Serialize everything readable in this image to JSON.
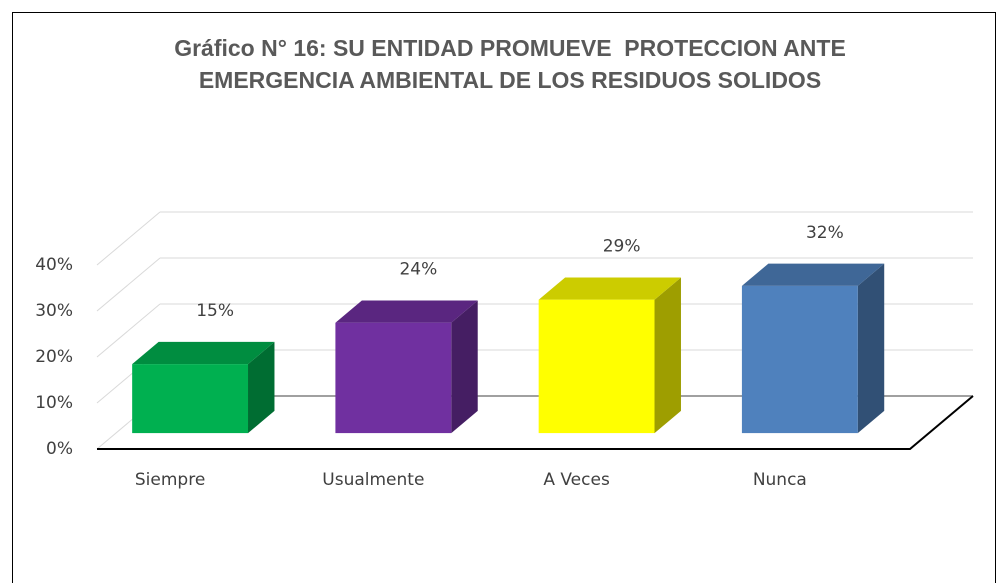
{
  "chart_data": {
    "type": "bar3d",
    "title": [
      "Gráfico N° 16: SU ENTIDAD PROMUEVE  PROTECCION ANTE",
      "EMERGENCIA AMBIENTAL DE LOS RESIDUOS SOLIDOS"
    ],
    "categories": [
      "Siempre",
      "Usualmente",
      "A Veces",
      "Nunca"
    ],
    "values": [
      15,
      24,
      29,
      32
    ],
    "value_labels": [
      "15%",
      "24%",
      "29%",
      "32%"
    ],
    "colors": [
      "#00b050",
      "#7030a0",
      "#ffff00",
      "#4f81bd"
    ],
    "ylim": [
      0,
      40
    ],
    "yticks": [
      {
        "value": 0,
        "label": "0%"
      },
      {
        "value": 10,
        "label": "10%"
      },
      {
        "value": 20,
        "label": "20%"
      },
      {
        "value": 30,
        "label": "30%"
      },
      {
        "value": 40,
        "label": "40%"
      }
    ],
    "grid": true
  }
}
